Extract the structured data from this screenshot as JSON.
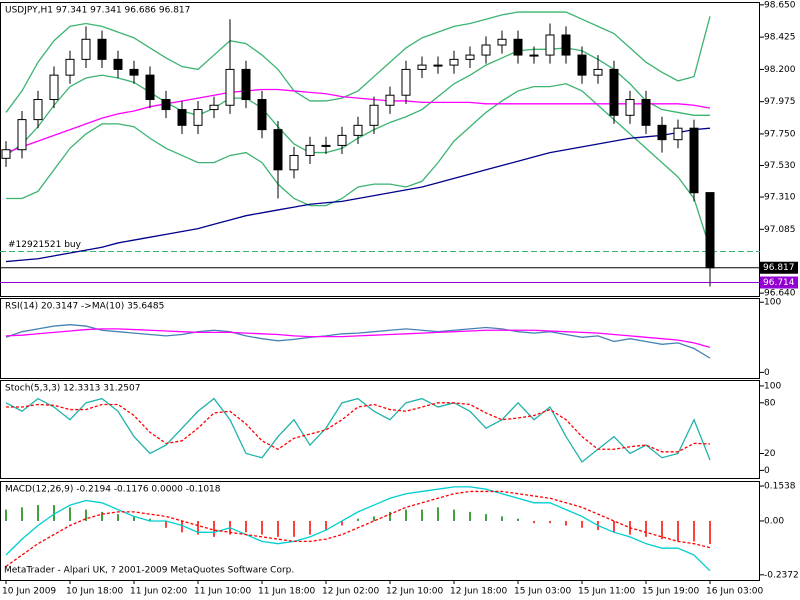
{
  "chart_data": [
    {
      "type": "candlestick",
      "title": "USDJPY,H1  97.341 97.341 96.686 96.817",
      "categories": [
        "10 Jun 2009",
        null,
        null,
        null,
        "10 Jun 18:00",
        null,
        null,
        null,
        "11 Jun 02:00",
        null,
        null,
        null,
        "11 Jun 10:00",
        null,
        null,
        null,
        "11 Jun 18:00",
        null,
        null,
        null,
        "12 Jun 02:00",
        null,
        null,
        null,
        "12 Jun 10:00",
        null,
        null,
        null,
        "12 Jun 18:00",
        null,
        null,
        null,
        "15 Jun 03:00",
        null,
        null,
        null,
        "15 Jun 11:00",
        null,
        null,
        null,
        "15 Jun 19:00",
        null,
        null,
        null,
        "16 Jun 03:00"
      ],
      "open": [
        97.58,
        97.64,
        97.85,
        97.99,
        98.16,
        98.27,
        98.41,
        98.27,
        98.2,
        98.16,
        97.99,
        97.92,
        97.81,
        97.92,
        97.95,
        98.2,
        97.99,
        97.78,
        97.5,
        97.6,
        97.67,
        97.67,
        97.74,
        97.81,
        97.95,
        98.02,
        98.2,
        98.23,
        98.23,
        98.27,
        98.3,
        98.37,
        98.41,
        98.3,
        98.3,
        98.44,
        98.3,
        98.16,
        98.2,
        97.88,
        97.99,
        97.81,
        97.71,
        97.79,
        97.341
      ],
      "high": [
        97.7,
        97.91,
        98.05,
        98.22,
        98.33,
        98.5,
        98.47,
        98.33,
        98.26,
        98.22,
        98.05,
        97.98,
        97.98,
        98.01,
        98.55,
        98.26,
        98.05,
        97.84,
        97.66,
        97.73,
        97.73,
        97.8,
        97.87,
        98.01,
        98.08,
        98.26,
        98.29,
        98.29,
        98.33,
        98.36,
        98.43,
        98.47,
        98.47,
        98.36,
        98.52,
        98.5,
        98.36,
        98.3,
        98.26,
        98.05,
        98.05,
        97.87,
        97.85,
        97.85,
        97.341
      ],
      "low": [
        97.52,
        97.58,
        97.79,
        97.93,
        98.1,
        98.21,
        98.21,
        98.14,
        98.1,
        97.93,
        97.86,
        97.75,
        97.75,
        97.86,
        97.89,
        97.93,
        97.72,
        97.3,
        97.44,
        97.54,
        97.61,
        97.61,
        97.68,
        97.75,
        97.89,
        97.96,
        98.14,
        98.17,
        98.17,
        98.21,
        98.24,
        98.31,
        98.24,
        98.24,
        98.24,
        98.24,
        98.1,
        98.1,
        97.82,
        97.82,
        97.75,
        97.62,
        97.65,
        97.28,
        96.686
      ],
      "close": [
        97.64,
        97.85,
        97.99,
        98.16,
        98.27,
        98.41,
        98.27,
        98.2,
        98.16,
        97.99,
        97.92,
        97.81,
        97.92,
        97.95,
        98.2,
        97.99,
        97.78,
        97.5,
        97.6,
        97.67,
        97.67,
        97.74,
        97.81,
        97.95,
        98.02,
        98.2,
        98.23,
        98.23,
        98.27,
        98.3,
        98.37,
        98.41,
        98.3,
        98.3,
        98.44,
        98.3,
        98.16,
        98.2,
        97.88,
        97.99,
        97.81,
        97.71,
        97.79,
        97.34,
        96.817
      ],
      "up_color": "#ffffff",
      "down_color": "#000000",
      "series": [
        {
          "color": "#3cb371",
          "values": [
            97.9,
            98.05,
            98.25,
            98.4,
            98.5,
            98.52,
            98.5,
            98.46,
            98.42,
            98.35,
            98.28,
            98.22,
            98.2,
            98.3,
            98.4,
            98.38,
            98.3,
            98.2,
            98.05,
            97.98,
            97.98,
            98.0,
            98.05,
            98.15,
            98.25,
            98.35,
            98.42,
            98.46,
            98.5,
            98.52,
            98.55,
            98.58,
            98.6,
            98.6,
            98.6,
            98.6,
            98.55,
            98.5,
            98.45,
            98.35,
            98.25,
            98.18,
            98.12,
            98.15,
            98.57
          ]
        },
        {
          "color": "#3cb371",
          "values": [
            97.6,
            97.68,
            97.8,
            97.95,
            98.08,
            98.14,
            98.16,
            98.14,
            98.11,
            98.04,
            97.97,
            97.91,
            97.88,
            97.93,
            98.0,
            98.0,
            97.93,
            97.8,
            97.68,
            97.62,
            97.62,
            97.65,
            97.72,
            97.78,
            97.83,
            97.87,
            97.92,
            98.01,
            98.1,
            98.16,
            98.23,
            98.28,
            98.33,
            98.34,
            98.34,
            98.35,
            98.33,
            98.27,
            98.2,
            98.1,
            97.98,
            97.92,
            97.9,
            97.88,
            97.88
          ]
        },
        {
          "color": "#3cb371",
          "values": [
            97.3,
            97.3,
            97.35,
            97.5,
            97.65,
            97.75,
            97.82,
            97.82,
            97.8,
            97.72,
            97.65,
            97.6,
            97.55,
            97.55,
            97.6,
            97.62,
            97.55,
            97.4,
            97.3,
            97.25,
            97.25,
            97.3,
            97.38,
            97.4,
            97.4,
            97.38,
            97.42,
            97.55,
            97.7,
            97.8,
            97.9,
            97.98,
            98.05,
            98.08,
            98.08,
            98.1,
            98.05,
            97.95,
            97.85,
            97.75,
            97.65,
            97.55,
            97.45,
            97.3,
            96.95
          ]
        },
        {
          "color": "#ff00ff",
          "values": [
            97.62,
            97.66,
            97.7,
            97.74,
            97.78,
            97.82,
            97.86,
            97.89,
            97.91,
            97.94,
            97.96,
            97.98,
            98.0,
            98.02,
            98.04,
            98.05,
            98.06,
            98.06,
            98.05,
            98.04,
            98.03,
            98.01,
            98.0,
            97.99,
            97.98,
            97.98,
            97.97,
            97.97,
            97.97,
            97.97,
            97.96,
            97.96,
            97.96,
            97.96,
            97.96,
            97.96,
            97.96,
            97.96,
            97.96,
            97.96,
            97.96,
            97.96,
            97.96,
            97.95,
            97.93
          ]
        },
        {
          "color": "#00008b",
          "values": [
            96.86,
            96.87,
            96.88,
            96.9,
            96.92,
            96.94,
            96.96,
            96.99,
            97.01,
            97.03,
            97.05,
            97.07,
            97.09,
            97.12,
            97.15,
            97.18,
            97.2,
            97.22,
            97.24,
            97.26,
            97.27,
            97.28,
            97.3,
            97.32,
            97.34,
            97.36,
            97.38,
            97.41,
            97.44,
            97.47,
            97.5,
            97.53,
            97.56,
            97.59,
            97.62,
            97.64,
            97.66,
            97.68,
            97.7,
            97.72,
            97.73,
            97.74,
            97.76,
            97.78,
            97.79
          ]
        }
      ],
      "levels": [
        {
          "value": 96.93,
          "label": "#12921521 buy",
          "color": "#3cb371",
          "dash": true
        }
      ],
      "price_tags": [
        {
          "value": 96.817,
          "color": "#000000"
        },
        {
          "value": 96.714,
          "color": "#9400d3"
        }
      ],
      "ylim": [
        96.62,
        98.67
      ],
      "yticks": [
        {
          "value": 98.65,
          "label": "98.650"
        },
        98.425,
        {
          "value": 98.2,
          "label": "98.200"
        },
        97.975,
        {
          "value": 97.75,
          "label": "97.750"
        },
        {
          "value": 97.53,
          "label": "97.530"
        },
        {
          "value": 97.31,
          "label": "97.310"
        },
        97.085,
        {
          "value": 96.64,
          "label": "96.640"
        }
      ]
    },
    {
      "type": "line",
      "title": "RSI(14) 20.3147  ->MA(10) 35.6485",
      "series": [
        {
          "color": "#4682b4",
          "values": [
            50,
            58,
            62,
            66,
            68,
            66,
            60,
            58,
            56,
            54,
            52,
            54,
            58,
            60,
            58,
            52,
            48,
            45,
            47,
            50,
            52,
            55,
            56,
            58,
            60,
            62,
            60,
            58,
            60,
            62,
            64,
            62,
            58,
            56,
            58,
            54,
            50,
            52,
            44,
            48,
            44,
            40,
            42,
            34,
            20.3147
          ]
        },
        {
          "color": "#ff00ff",
          "values": [
            52,
            53,
            55,
            57,
            59,
            61,
            62,
            62,
            61,
            60,
            59,
            58,
            57,
            57,
            57,
            56,
            55,
            54,
            52,
            51,
            51,
            51,
            52,
            53,
            54,
            55,
            56,
            57,
            58,
            59,
            60,
            60,
            60,
            60,
            59,
            58,
            57,
            56,
            54,
            52,
            50,
            48,
            46,
            42,
            35.6485
          ]
        }
      ],
      "ylim": [
        -8,
        106
      ],
      "yticks": [
        100,
        0
      ]
    },
    {
      "type": "line",
      "title": "Stoch(5,3,3) 12.3313 31.2507",
      "series": [
        {
          "color": "#20b2aa",
          "values": [
            80,
            70,
            85,
            75,
            60,
            80,
            85,
            70,
            40,
            20,
            30,
            50,
            70,
            85,
            60,
            20,
            15,
            40,
            60,
            30,
            50,
            80,
            85,
            70,
            60,
            80,
            85,
            75,
            80,
            70,
            50,
            60,
            80,
            60,
            75,
            40,
            10,
            25,
            40,
            20,
            30,
            15,
            20,
            60,
            12.3313
          ]
        },
        {
          "color": "#ff0000",
          "dash": true,
          "values": [
            75,
            75,
            78,
            77,
            72,
            72,
            78,
            78,
            65,
            45,
            32,
            35,
            50,
            68,
            70,
            55,
            35,
            25,
            38,
            43,
            48,
            60,
            75,
            78,
            72,
            70,
            75,
            80,
            80,
            78,
            68,
            60,
            62,
            65,
            72,
            60,
            40,
            25,
            25,
            28,
            30,
            22,
            22,
            32,
            31.2507
          ]
        }
      ],
      "ylim": [
        -9,
        107
      ],
      "yticks": [
        100,
        80,
        20,
        0
      ]
    },
    {
      "type": "line",
      "title": "MACD(12,26,9) -0.2194 -0.1176 0.0000 -0.1018",
      "histogram": {
        "colors": [
          "#008000",
          "#ff0000"
        ],
        "values": [
          0.05,
          0.06,
          0.07,
          0.07,
          0.06,
          0.05,
          0.04,
          0.03,
          0.02,
          0.01,
          -0.03,
          -0.05,
          -0.06,
          -0.07,
          -0.06,
          -0.05,
          -0.06,
          -0.07,
          -0.07,
          -0.06,
          -0.04,
          -0.02,
          0.01,
          0.02,
          0.04,
          0.05,
          0.05,
          0.06,
          0.05,
          0.04,
          0.03,
          0.02,
          0.01,
          -0.01,
          -0.01,
          -0.02,
          -0.03,
          -0.04,
          -0.05,
          -0.06,
          -0.07,
          -0.08,
          -0.09,
          -0.09,
          -0.1018
        ]
      },
      "series": [
        {
          "color": "#00ced1",
          "values": [
            -0.15,
            -0.08,
            -0.02,
            0.03,
            0.07,
            0.09,
            0.08,
            0.05,
            0.02,
            0,
            0,
            -0.02,
            -0.05,
            -0.05,
            -0.03,
            -0.06,
            -0.09,
            -0.1,
            -0.09,
            -0.07,
            -0.04,
            0,
            0.04,
            0.07,
            0.1,
            0.12,
            0.13,
            0.14,
            0.15,
            0.15,
            0.14,
            0.12,
            0.1,
            0.08,
            0.08,
            0.05,
            0.02,
            -0.02,
            -0.05,
            -0.07,
            -0.1,
            -0.12,
            -0.12,
            -0.15,
            -0.2194
          ]
        },
        {
          "color": "#ff0000",
          "dash": true,
          "values": [
            -0.2,
            -0.15,
            -0.1,
            -0.06,
            -0.02,
            0.01,
            0.03,
            0.04,
            0.04,
            0.03,
            0.02,
            0,
            -0.02,
            -0.04,
            -0.05,
            -0.06,
            -0.07,
            -0.08,
            -0.09,
            -0.09,
            -0.08,
            -0.06,
            -0.03,
            0,
            0.03,
            0.06,
            0.08,
            0.1,
            0.12,
            0.13,
            0.13,
            0.13,
            0.12,
            0.11,
            0.1,
            0.08,
            0.06,
            0.03,
            0,
            -0.03,
            -0.05,
            -0.07,
            -0.09,
            -0.1,
            -0.1176
          ]
        }
      ],
      "ylim": [
        -0.26,
        0.176
      ],
      "yticks": [
        0.1538,
        {
          "value": 0,
          "label": "0.00"
        },
        -0.2372
      ]
    }
  ],
  "footer": "MetaTrader - Alpari UK, ? 2001-2009 MetaQuotes Software Corp."
}
